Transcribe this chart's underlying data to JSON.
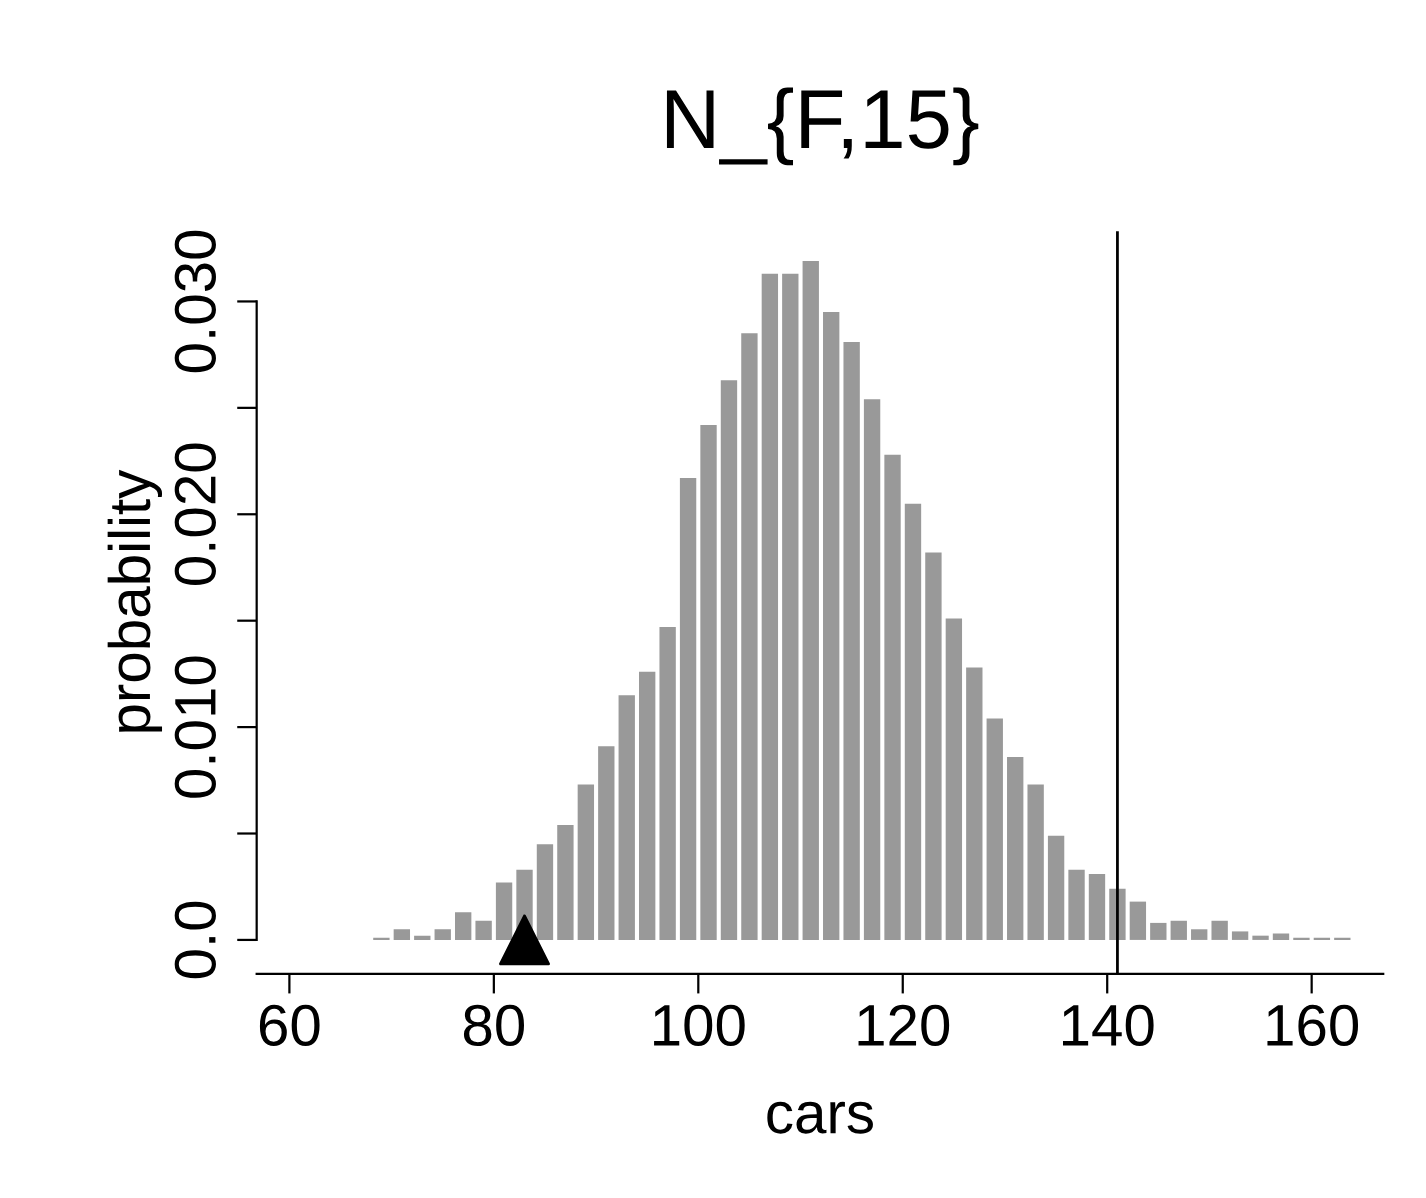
{
  "chart_data": {
    "type": "histogram",
    "title": "N_{F,15}",
    "xlabel": "cars",
    "ylabel": "probability",
    "bins": [
      68,
      70,
      72,
      74,
      76,
      78,
      80,
      82,
      84,
      86,
      88,
      90,
      92,
      94,
      96,
      98,
      100,
      102,
      104,
      106,
      108,
      110,
      112,
      114,
      116,
      118,
      120,
      122,
      124,
      126,
      128,
      130,
      132,
      134,
      136,
      138,
      140,
      142,
      144,
      146,
      148,
      150,
      152,
      154,
      156,
      158,
      160,
      162,
      164
    ],
    "values": [
      0.0001,
      0.0005,
      0.0002,
      0.0005,
      0.0013,
      0.0009,
      0.0027,
      0.0033,
      0.0045,
      0.0054,
      0.0073,
      0.0091,
      0.0115,
      0.0126,
      0.0147,
      0.0217,
      0.0242,
      0.0263,
      0.0285,
      0.0313,
      0.0313,
      0.0319,
      0.0295,
      0.0281,
      0.0254,
      0.0228,
      0.0205,
      0.0182,
      0.0151,
      0.0128,
      0.0104,
      0.0086,
      0.0073,
      0.0049,
      0.0033,
      0.0031,
      0.0024,
      0.0018,
      0.0008,
      0.0009,
      0.0005,
      0.0009,
      0.0004,
      0.0002,
      0.0003,
      0.0001,
      0.0001,
      0.0001
    ],
    "color": "#999999",
    "series": [
      {
        "type": "scatter",
        "x": [
          83
        ],
        "values": [
          0
        ],
        "color": "#000000",
        "marker": "triangle"
      }
    ],
    "ref_lines": [
      {
        "axis": "x",
        "value": 141,
        "color": "#000000",
        "line_style": "solid"
      }
    ],
    "xlim": [
      56.8,
      167
    ],
    "ylim": [
      -0.0016,
      0.0333
    ],
    "xticks": [
      60,
      80,
      100,
      120,
      140,
      160
    ],
    "yticks": [
      {
        "value": 0,
        "label": "0.0"
      },
      {
        "value": 0.005,
        "label": null
      },
      {
        "value": 0.01,
        "label": "0.010"
      },
      {
        "value": 0.015,
        "label": null
      },
      {
        "value": 0.02,
        "label": "0.020"
      },
      {
        "value": 0.025,
        "label": null
      },
      {
        "value": 0.03,
        "label": "0.030"
      }
    ],
    "grid": false,
    "legend": false
  }
}
